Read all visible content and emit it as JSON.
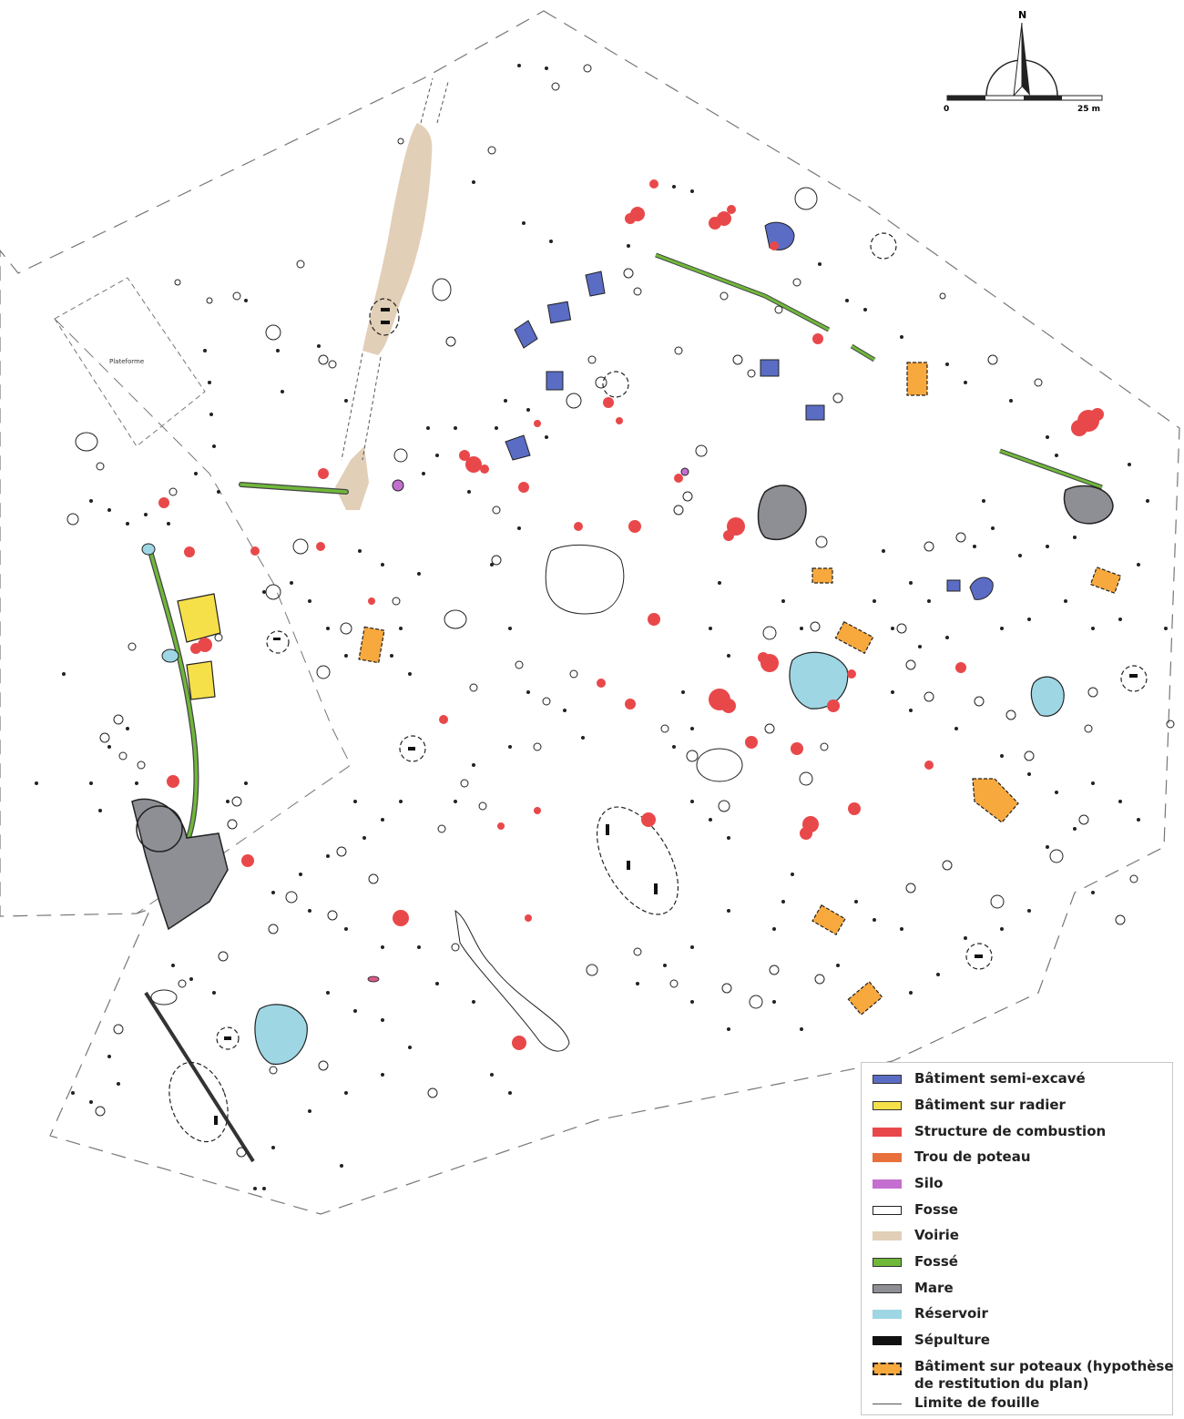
{
  "map": {
    "north_label": "N",
    "scale": {
      "start": "0",
      "end": "25 m"
    },
    "area_label": "Plateforme",
    "colors": {
      "semi_excave": "#5b6cc4",
      "radier": "#f6e04a",
      "combustion": "#e9484a",
      "poteau": "#e8703c",
      "silo": "#c46fd0",
      "fosse": "#ffffff",
      "voirie": "#e2cfb8",
      "fosse_ditch": "#6fb83a",
      "mare": "#8d8f95",
      "reservoir": "#9ed6e4",
      "sepulture": "#111111",
      "batiment_poteaux": "#f7a93e"
    }
  },
  "legend": {
    "items": [
      {
        "label": "Bâtiment semi-excavé",
        "color": "#5b6cc4",
        "style": "solid"
      },
      {
        "label": "Bâtiment sur radier",
        "color": "#f6e04a",
        "style": "solid"
      },
      {
        "label": "Structure de combustion",
        "color": "#e9484a",
        "style": "solid"
      },
      {
        "label": "Trou de poteau",
        "color": "#e8703c",
        "style": "solid"
      },
      {
        "label": "Silo",
        "color": "#c46fd0",
        "style": "solid"
      },
      {
        "label": "Fosse",
        "color": "#ffffff",
        "style": "outline"
      },
      {
        "label": "Voirie",
        "color": "#e2cfb8",
        "style": "solid"
      },
      {
        "label": "Fossé",
        "color": "#6fb83a",
        "style": "solid"
      },
      {
        "label": "Mare",
        "color": "#8d8f95",
        "style": "solid"
      },
      {
        "label": "Réservoir",
        "color": "#9ed6e4",
        "style": "solid"
      },
      {
        "label": "Sépulture",
        "color": "#111111",
        "style": "solid"
      },
      {
        "label": "Bâtiment sur poteaux (hypothèse de restitution du plan)",
        "color": "#f7a93e",
        "style": "dashed"
      },
      {
        "label": "Limite de fouille",
        "color": "#555555",
        "style": "line"
      }
    ]
  }
}
